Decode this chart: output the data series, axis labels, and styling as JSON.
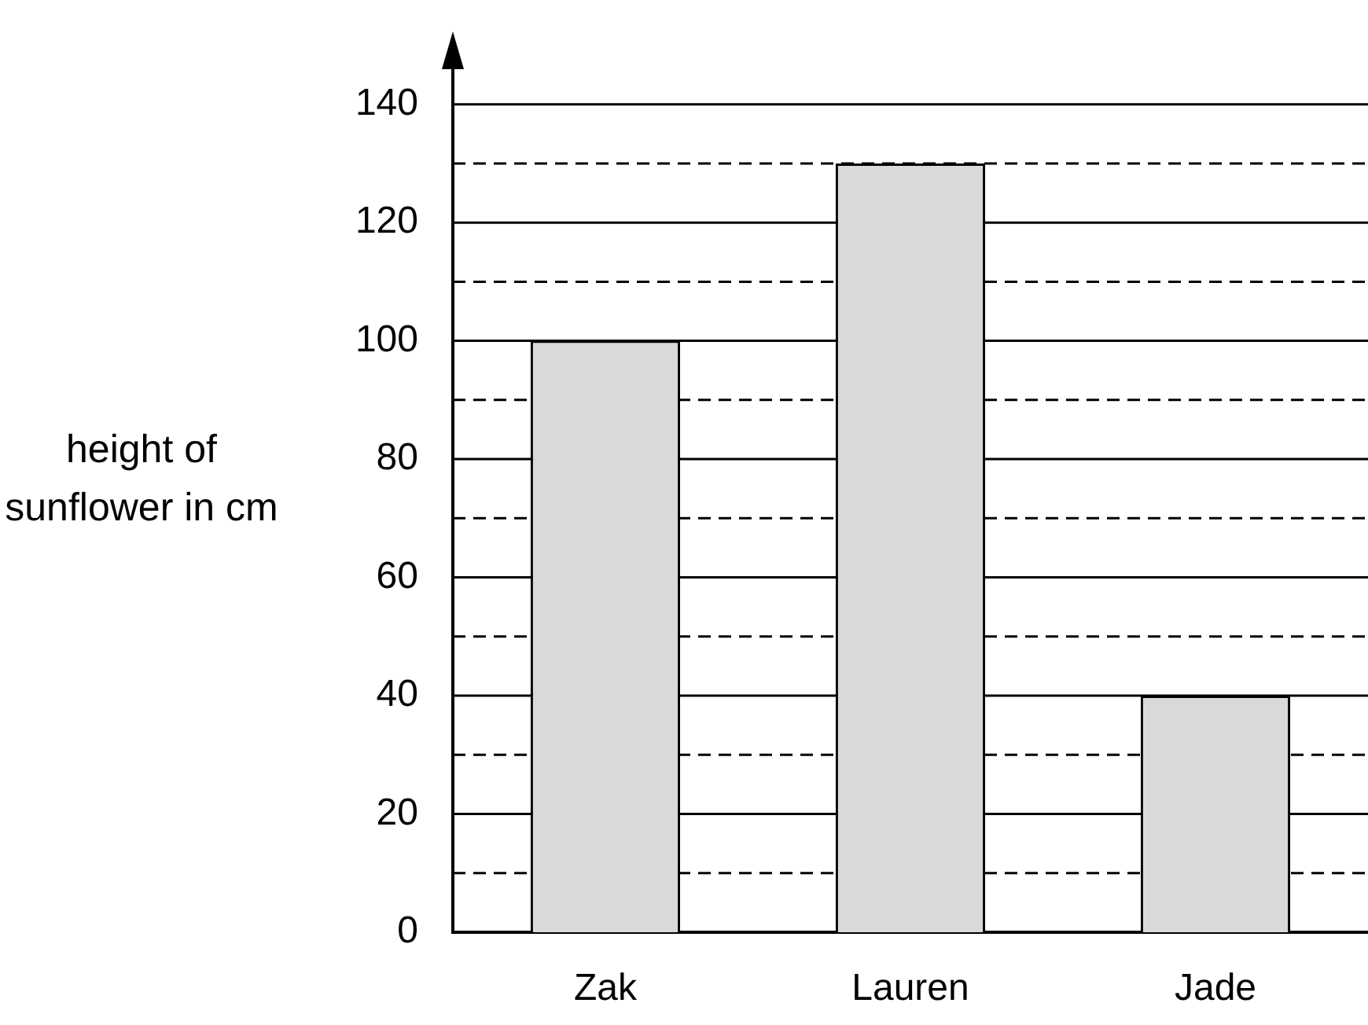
{
  "chart_data": {
    "type": "bar",
    "ylabel": "height of sunflower in cm",
    "categories": [
      "Zak",
      "Lauren",
      "Jade"
    ],
    "values": [
      100,
      130,
      40
    ],
    "color": "#d9d9d9",
    "ylim": [
      0,
      147
    ],
    "yticks": [
      0,
      {
        "value": 10,
        "label": null
      },
      20,
      {
        "value": 30,
        "label": null
      },
      40,
      {
        "value": 50,
        "label": null
      },
      60,
      {
        "value": 70,
        "label": null
      },
      80,
      {
        "value": 90,
        "label": null
      },
      100,
      {
        "value": 110,
        "label": null
      },
      120,
      {
        "value": 130,
        "label": null
      },
      140
    ],
    "grid": "y"
  }
}
